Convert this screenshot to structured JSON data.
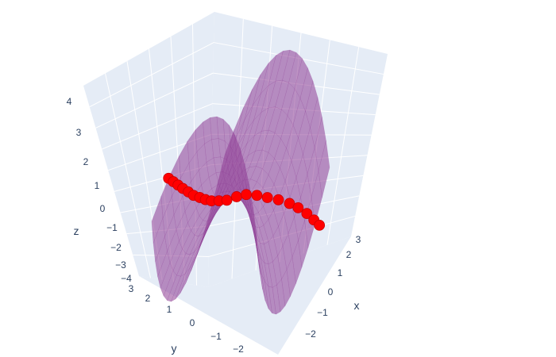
{
  "chart_data": {
    "type": "surface3d",
    "scene": {
      "background": "#e5ecf6",
      "grid_color": "#ffffff",
      "x_axis": {
        "title": "x",
        "ticks": [
          "−2",
          "−1",
          "0",
          "1",
          "2",
          "3"
        ],
        "tick_values": [
          -2,
          -1,
          0,
          1,
          2,
          3
        ]
      },
      "y_axis": {
        "title": "y",
        "ticks": [
          "−2",
          "−1",
          "0",
          "1",
          "2",
          "3"
        ],
        "tick_values": [
          -2,
          -1,
          0,
          1,
          2,
          3
        ]
      },
      "z_axis": {
        "title": "z",
        "ticks": [
          "−4",
          "−3",
          "−2",
          "−1",
          "0",
          "1",
          "2",
          "3",
          "4"
        ],
        "tick_values": [
          -4,
          -3,
          -2,
          -1,
          0,
          1,
          2,
          3,
          4
        ]
      }
    },
    "series": [
      {
        "type": "surface",
        "function": "z = x^2 - y^2",
        "x_range": [
          -2,
          2
        ],
        "y_range": [
          -2,
          2
        ],
        "color": "#8e3d94",
        "opacity": 0.6
      },
      {
        "type": "scatter3d-markers",
        "color": "#ff0000",
        "points": [
          [
            -2.0,
            1.55,
            1.6
          ],
          [
            -1.85,
            1.45,
            1.4
          ],
          [
            -1.7,
            1.35,
            1.2
          ],
          [
            -1.55,
            1.25,
            1.0
          ],
          [
            -1.4,
            1.12,
            0.8
          ],
          [
            -1.25,
            1.0,
            0.6
          ],
          [
            -1.1,
            0.85,
            0.45
          ],
          [
            -0.95,
            0.72,
            0.3
          ],
          [
            -0.8,
            0.58,
            0.18
          ],
          [
            -0.6,
            0.42,
            0.08
          ],
          [
            -0.4,
            0.25,
            0.0
          ],
          [
            -0.15,
            0.05,
            0.0
          ],
          [
            0.1,
            -0.15,
            -0.05
          ],
          [
            0.35,
            -0.4,
            -0.2
          ],
          [
            0.6,
            -0.65,
            -0.4
          ],
          [
            0.85,
            -0.92,
            -0.6
          ],
          [
            1.1,
            -1.2,
            -0.85
          ],
          [
            1.3,
            -1.42,
            -1.1
          ],
          [
            1.5,
            -1.65,
            -1.4
          ],
          [
            1.65,
            -1.85,
            -1.7
          ],
          [
            1.78,
            -2.0,
            -1.95
          ]
        ]
      }
    ]
  }
}
